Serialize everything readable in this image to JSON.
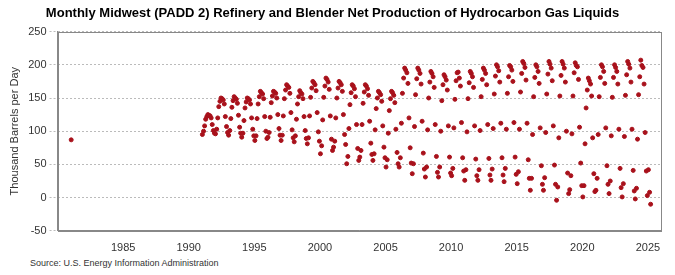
{
  "chart_data": {
    "type": "scatter",
    "title": "Monthly Midwest (PADD 2) Refinery and Blender Net Production of Hydrocarbon Gas Liquids",
    "y_label": "Thousand Barrels per Day",
    "note": "Source: U.S. Energy Information Administration",
    "color": "#a8111b",
    "marker": "circle",
    "grid": "y",
    "xlim": [
      1980,
      2026
    ],
    "xticks": [
      1985,
      1990,
      1995,
      2000,
      2005,
      2010,
      2015,
      2020,
      2025
    ],
    "ylim": [
      -50,
      250
    ],
    "yticks": [
      -50,
      0,
      50,
      100,
      150,
      200,
      250
    ],
    "x": [
      1981.04,
      1991.04,
      1991.13,
      1991.21,
      1991.29,
      1991.38,
      1991.46,
      1991.54,
      1991.63,
      1991.71,
      1991.79,
      1991.88,
      1991.96,
      1992.04,
      1992.13,
      1992.21,
      1992.29,
      1992.38,
      1992.46,
      1992.54,
      1992.63,
      1992.71,
      1992.79,
      1992.88,
      1992.96,
      1993.04,
      1993.13,
      1993.21,
      1993.29,
      1993.38,
      1993.46,
      1993.54,
      1993.63,
      1993.71,
      1993.79,
      1993.88,
      1993.96,
      1994.04,
      1994.13,
      1994.21,
      1994.29,
      1994.38,
      1994.46,
      1994.54,
      1994.63,
      1994.71,
      1994.79,
      1994.88,
      1994.96,
      1995.04,
      1995.13,
      1995.21,
      1995.29,
      1995.38,
      1995.46,
      1995.54,
      1995.63,
      1995.71,
      1995.79,
      1995.88,
      1995.96,
      1996.04,
      1996.13,
      1996.21,
      1996.29,
      1996.38,
      1996.46,
      1996.54,
      1996.63,
      1996.71,
      1996.79,
      1996.88,
      1996.96,
      1997.04,
      1997.13,
      1997.21,
      1997.29,
      1997.38,
      1997.46,
      1997.54,
      1997.63,
      1997.71,
      1997.79,
      1997.88,
      1997.96,
      1998.04,
      1998.13,
      1998.21,
      1998.29,
      1998.38,
      1998.46,
      1998.54,
      1998.63,
      1998.71,
      1998.79,
      1998.88,
      1998.96,
      1999.04,
      1999.13,
      1999.21,
      1999.29,
      1999.38,
      1999.46,
      1999.54,
      1999.63,
      1999.71,
      1999.79,
      1999.88,
      1999.96,
      2000.04,
      2000.13,
      2000.21,
      2000.29,
      2000.38,
      2000.46,
      2000.54,
      2000.63,
      2000.71,
      2000.79,
      2000.88,
      2000.96,
      2001.04,
      2001.13,
      2001.21,
      2001.29,
      2001.38,
      2001.46,
      2001.54,
      2001.63,
      2001.71,
      2001.79,
      2001.88,
      2001.96,
      2002.04,
      2002.13,
      2002.21,
      2002.29,
      2002.38,
      2002.46,
      2002.54,
      2002.63,
      2002.71,
      2002.79,
      2002.88,
      2002.96,
      2003.04,
      2003.13,
      2003.21,
      2003.29,
      2003.38,
      2003.46,
      2003.54,
      2003.63,
      2003.71,
      2003.79,
      2003.88,
      2003.96,
      2004.04,
      2004.13,
      2004.21,
      2004.29,
      2004.38,
      2004.46,
      2004.54,
      2004.63,
      2004.71,
      2004.79,
      2004.88,
      2004.96,
      2005.04,
      2005.13,
      2005.21,
      2005.29,
      2005.38,
      2005.46,
      2005.54,
      2005.63,
      2005.71,
      2005.79,
      2005.88,
      2005.96,
      2006.04,
      2006.13,
      2006.21,
      2006.29,
      2006.38,
      2006.46,
      2006.54,
      2006.63,
      2006.71,
      2006.79,
      2006.88,
      2006.96,
      2007.04,
      2007.13,
      2007.21,
      2007.29,
      2007.38,
      2007.46,
      2007.54,
      2007.63,
      2007.71,
      2007.79,
      2007.88,
      2007.96,
      2008.04,
      2008.13,
      2008.21,
      2008.29,
      2008.38,
      2008.46,
      2008.54,
      2008.63,
      2008.71,
      2008.79,
      2008.88,
      2008.96,
      2009.04,
      2009.13,
      2009.21,
      2009.29,
      2009.38,
      2009.46,
      2009.54,
      2009.63,
      2009.71,
      2009.79,
      2009.88,
      2009.96,
      2010.04,
      2010.13,
      2010.21,
      2010.29,
      2010.38,
      2010.46,
      2010.54,
      2010.63,
      2010.71,
      2010.79,
      2010.88,
      2010.96,
      2011.04,
      2011.13,
      2011.21,
      2011.29,
      2011.38,
      2011.46,
      2011.54,
      2011.63,
      2011.71,
      2011.79,
      2011.88,
      2011.96,
      2012.04,
      2012.13,
      2012.21,
      2012.29,
      2012.38,
      2012.46,
      2012.54,
      2012.63,
      2012.71,
      2012.79,
      2012.88,
      2012.96,
      2013.04,
      2013.13,
      2013.21,
      2013.29,
      2013.38,
      2013.46,
      2013.54,
      2013.63,
      2013.71,
      2013.79,
      2013.88,
      2013.96,
      2014.04,
      2014.13,
      2014.21,
      2014.29,
      2014.38,
      2014.46,
      2014.54,
      2014.63,
      2014.71,
      2014.79,
      2014.88,
      2014.96,
      2015.04,
      2015.13,
      2015.21,
      2015.29,
      2015.38,
      2015.46,
      2015.54,
      2015.63,
      2015.71,
      2015.79,
      2015.88,
      2015.96,
      2016.04,
      2016.13,
      2016.21,
      2016.29,
      2016.38,
      2016.46,
      2016.54,
      2016.63,
      2016.71,
      2016.79,
      2016.88,
      2016.96,
      2017.04,
      2017.13,
      2017.21,
      2017.29,
      2017.38,
      2017.46,
      2017.54,
      2017.63,
      2017.71,
      2017.79,
      2017.88,
      2017.96,
      2018.04,
      2018.13,
      2018.21,
      2018.29,
      2018.38,
      2018.46,
      2018.54,
      2018.63,
      2018.71,
      2018.79,
      2018.88,
      2018.96,
      2019.04,
      2019.13,
      2019.21,
      2019.29,
      2019.38,
      2019.46,
      2019.54,
      2019.63,
      2019.71,
      2019.79,
      2019.88,
      2019.96,
      2020.04,
      2020.13,
      2020.21,
      2020.29,
      2020.38,
      2020.46,
      2020.54,
      2020.63,
      2020.71,
      2020.79,
      2020.88,
      2020.96,
      2021.04,
      2021.13,
      2021.21,
      2021.29,
      2021.38,
      2021.46,
      2021.54,
      2021.63,
      2021.71,
      2021.79,
      2021.88,
      2021.96,
      2022.04,
      2022.13,
      2022.21,
      2022.29,
      2022.38,
      2022.46,
      2022.54,
      2022.63,
      2022.71,
      2022.79,
      2022.88,
      2022.96,
      2023.04,
      2023.13,
      2023.21,
      2023.29,
      2023.38,
      2023.46,
      2023.54,
      2023.63,
      2023.71,
      2023.79,
      2023.88,
      2023.96,
      2024.04,
      2024.13,
      2024.21,
      2024.29,
      2024.38,
      2024.46,
      2024.54,
      2024.63,
      2024.71,
      2024.79,
      2024.88,
      2024.96,
      2025.04,
      2025.13,
      2025.21
    ],
    "values": [
      87,
      95,
      100,
      108,
      118,
      122,
      125,
      124,
      123,
      120,
      110,
      101,
      97,
      96,
      103,
      120,
      137,
      145,
      150,
      149,
      147,
      141,
      122,
      107,
      98,
      94,
      101,
      119,
      136,
      146,
      152,
      150,
      148,
      142,
      124,
      106,
      97,
      91,
      97,
      116,
      135,
      144,
      150,
      149,
      147,
      141,
      120,
      103,
      93,
      86,
      93,
      119,
      141,
      152,
      160,
      158,
      156,
      149,
      122,
      100,
      89,
      91,
      98,
      121,
      143,
      153,
      160,
      159,
      157,
      150,
      125,
      104,
      94,
      86,
      94,
      123,
      149,
      162,
      170,
      168,
      166,
      157,
      128,
      102,
      90,
      84,
      93,
      118,
      141,
      152,
      161,
      158,
      156,
      149,
      122,
      101,
      89,
      81,
      90,
      123,
      151,
      165,
      175,
      173,
      170,
      161,
      128,
      99,
      85,
      66,
      78,
      117,
      151,
      168,
      180,
      178,
      174,
      163,
      123,
      88,
      71,
      76,
      85,
      120,
      150,
      165,
      175,
      173,
      170,
      160,
      125,
      95,
      80,
      51,
      62,
      104,
      140,
      158,
      170,
      168,
      164,
      152,
      110,
      74,
      56,
      61,
      71,
      110,
      142,
      159,
      170,
      168,
      164,
      154,
      115,
      82,
      65,
      56,
      66,
      102,
      134,
      150,
      160,
      158,
      155,
      145,
      108,
      76,
      60,
      46,
      57,
      97,
      131,
      149,
      160,
      158,
      154,
      143,
      103,
      68,
      51,
      46,
      60,
      112,
      157,
      180,
      195,
      192,
      188,
      172,
      120,
      75,
      52,
      36,
      51,
      107,
      155,
      179,
      195,
      192,
      187,
      171,
      115,
      67,
      43,
      31,
      46,
      102,
      150,
      174,
      190,
      187,
      182,
      166,
      110,
      62,
      38,
      31,
      46,
      100,
      146,
      170,
      185,
      182,
      177,
      162,
      108,
      61,
      37,
      33,
      44,
      105,
      148,
      176,
      188,
      189,
      180,
      168,
      113,
      60,
      40,
      26,
      42,
      99,
      149,
      173,
      190,
      187,
      182,
      166,
      108,
      58,
      33,
      26,
      42,
      101,
      152,
      178,
      195,
      192,
      187,
      170,
      110,
      59,
      34,
      26,
      43,
      104,
      156,
      183,
      200,
      197,
      191,
      174,
      112,
      60,
      34,
      24,
      44,
      103,
      157,
      182,
      199,
      197,
      192,
      175,
      113,
      61,
      35,
      21,
      39,
      103,
      159,
      187,
      205,
      202,
      196,
      177,
      112,
      57,
      29,
      11,
      29,
      95,
      152,
      181,
      200,
      197,
      190,
      172,
      105,
      48,
      20,
      11,
      30,
      98,
      156,
      186,
      205,
      201,
      195,
      176,
      108,
      49,
      20,
      -4,
      16,
      90,
      153,
      184,
      205,
      201,
      195,
      174,
      100,
      37,
      6,
      12,
      33,
      96,
      153,
      188,
      203,
      199,
      197,
      178,
      106,
      52,
      18,
      1,
      18,
      81,
      135,
      162,
      180,
      176,
      171,
      153,
      90,
      36,
      9,
      11,
      29,
      95,
      152,
      181,
      200,
      197,
      190,
      172,
      105,
      48,
      20,
      6,
      25,
      93,
      151,
      181,
      200,
      196,
      190,
      171,
      103,
      44,
      15,
      1,
      21,
      92,
      154,
      185,
      205,
      201,
      195,
      174,
      103,
      41,
      10,
      -2,
      14,
      88,
      155,
      182,
      207,
      199,
      196,
      171,
      98,
      40,
      3,
      42,
      8,
      -10
    ]
  }
}
